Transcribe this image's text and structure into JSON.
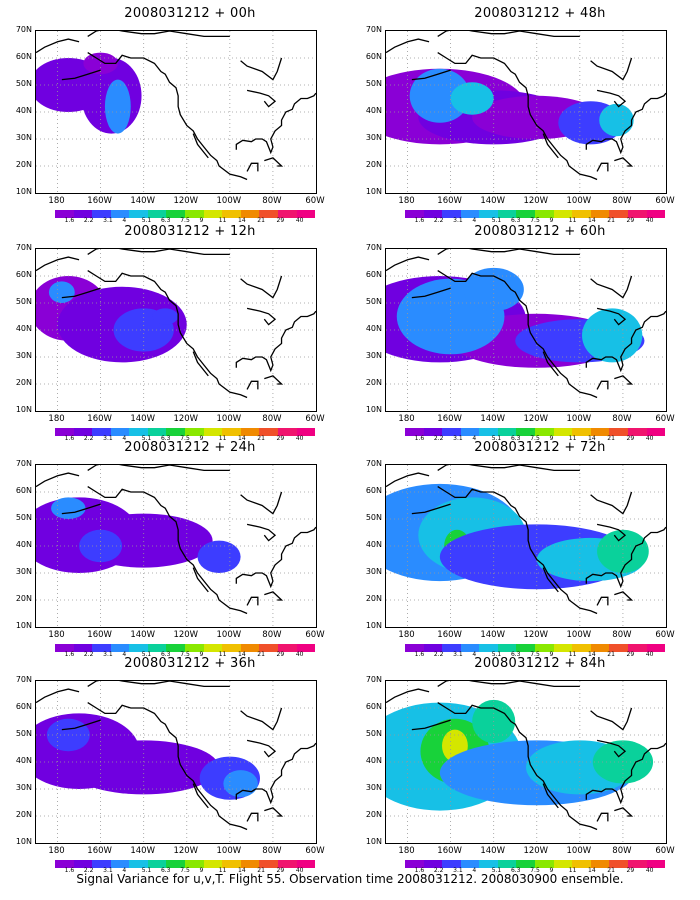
{
  "panels": [
    {
      "title": "2008031212 + 00h",
      "lead_hours": 0
    },
    {
      "title": "2008031212 + 48h",
      "lead_hours": 48
    },
    {
      "title": "2008031212 + 12h",
      "lead_hours": 12
    },
    {
      "title": "2008031212 + 60h",
      "lead_hours": 60
    },
    {
      "title": "2008031212 + 24h",
      "lead_hours": 24
    },
    {
      "title": "2008031212 + 72h",
      "lead_hours": 72
    },
    {
      "title": "2008031212 + 36h",
      "lead_hours": 36
    },
    {
      "title": "2008031212 + 84h",
      "lead_hours": 84
    }
  ],
  "lat_labels": [
    "70N",
    "60N",
    "50N",
    "40N",
    "30N",
    "20N",
    "10N"
  ],
  "lon_labels": [
    "180",
    "160W",
    "140W",
    "120W",
    "100W",
    "80W",
    "60W"
  ],
  "colorbar": {
    "labels": [
      "1.6",
      "2.2",
      "3.1",
      "4",
      "5.1",
      "6.3",
      "7.5",
      "9",
      "11",
      "14",
      "21",
      "29",
      "40"
    ],
    "colors": [
      "#8a00d6",
      "#7000e0",
      "#3d3dff",
      "#2a8cff",
      "#17c0e6",
      "#0ad19b",
      "#18d23a",
      "#8ae800",
      "#d4e600",
      "#f0c000",
      "#f08a00",
      "#f0502a",
      "#f0146e",
      "#f00082"
    ]
  },
  "caption": "Signal Variance for u,v,T. Flight 55. Observation time 2008031212. 2008030900 ensemble."
}
